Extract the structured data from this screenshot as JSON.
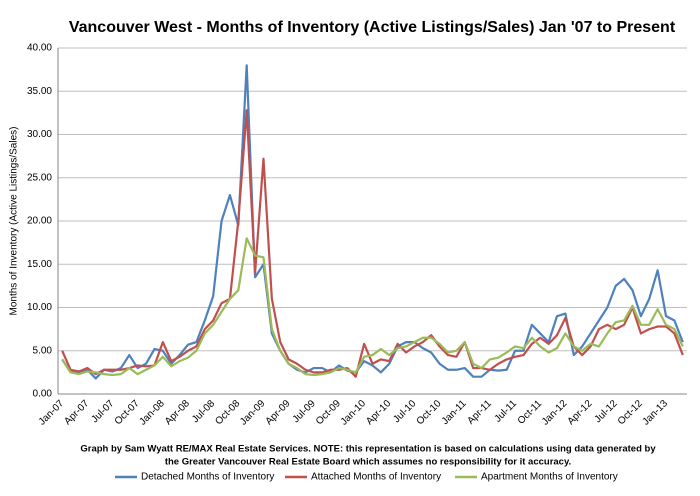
{
  "chart_data": {
    "type": "line",
    "title": "Vancouver West - Months of Inventory (Active Listings/Sales) Jan '07 to Present",
    "y_label": "Months of Inventory (Active Listings/Sales)",
    "notes": [
      "Graph by Sam Wyatt RE/MAX Real Estate Services.   NOTE: this representation is based on calculations using data generated by",
      "the Greater Vancouver Real Estate Board which assumes no responsibility for it accuracy."
    ],
    "categories": [
      "Jan-07",
      null,
      null,
      "Apr-07",
      null,
      null,
      "Jul-07",
      null,
      null,
      "Oct-07",
      null,
      null,
      "Jan-08",
      null,
      null,
      "Apr-08",
      null,
      null,
      "Jul-08",
      null,
      null,
      "Oct-08",
      null,
      null,
      "Jan-09",
      null,
      null,
      "Apr-09",
      null,
      null,
      "Jul-09",
      null,
      null,
      "Oct-09",
      null,
      null,
      "Jan-10",
      null,
      null,
      "Apr-10",
      null,
      null,
      "Jul-10",
      null,
      null,
      "Oct-10",
      null,
      null,
      "Jan-11",
      null,
      null,
      "Apr-11",
      null,
      null,
      "Jul-11",
      null,
      null,
      "Oct-11",
      null,
      null,
      "Jan-12",
      null,
      null,
      "Apr-12",
      null,
      null,
      "Jul-12",
      null,
      null,
      "Oct-12",
      null,
      null,
      "Jan-13",
      null,
      null
    ],
    "series": [
      {
        "name": "Detached Months of Inventory",
        "color": "#4f81bd",
        "values": [
          4.0,
          2.5,
          2.5,
          2.8,
          1.8,
          2.8,
          2.6,
          3.0,
          4.5,
          3.0,
          3.5,
          5.2,
          5.0,
          3.5,
          4.5,
          5.7,
          6.0,
          8.5,
          11.3,
          20.0,
          23.0,
          19.5,
          38.0,
          13.5,
          15.0,
          7.0,
          5.0,
          3.5,
          2.8,
          2.5,
          3.0,
          3.0,
          2.5,
          3.3,
          2.7,
          2.5,
          3.8,
          3.3,
          2.5,
          3.5,
          5.5,
          6.0,
          6.0,
          5.3,
          4.8,
          3.5,
          2.8,
          2.8,
          3.0,
          2.0,
          2.0,
          2.8,
          2.7,
          2.8,
          5.0,
          5.0,
          8.0,
          7.0,
          6.0,
          9.0,
          9.3,
          4.5,
          5.5,
          7.0,
          8.5,
          10.0,
          12.5,
          13.3,
          12.0,
          9.0,
          11.0,
          14.3,
          9.0,
          8.5,
          6.0
        ]
      },
      {
        "name": "Attached Months of Inventory",
        "color": "#c0504d",
        "values": [
          5.0,
          2.8,
          2.6,
          3.0,
          2.3,
          2.8,
          2.8,
          2.8,
          3.0,
          3.3,
          3.2,
          3.3,
          6.0,
          3.8,
          4.3,
          5.0,
          5.5,
          7.5,
          8.5,
          10.5,
          11.0,
          20.0,
          32.8,
          14.0,
          27.2,
          11.0,
          6.0,
          4.0,
          3.5,
          2.8,
          2.5,
          2.5,
          2.8,
          2.8,
          3.0,
          2.0,
          5.8,
          3.5,
          4.0,
          3.8,
          5.8,
          4.8,
          5.5,
          6.0,
          6.8,
          5.5,
          4.5,
          4.3,
          6.0,
          3.0,
          3.0,
          2.8,
          3.5,
          4.0,
          4.3,
          4.5,
          5.8,
          6.5,
          5.8,
          6.8,
          8.8,
          5.5,
          4.5,
          5.5,
          7.5,
          8.0,
          7.5,
          8.0,
          10.0,
          7.0,
          7.5,
          7.8,
          7.8,
          7.0,
          4.5
        ]
      },
      {
        "name": "Apartment Months of Inventory",
        "color": "#9bbb59",
        "values": [
          4.0,
          2.5,
          2.3,
          2.6,
          2.5,
          2.3,
          2.2,
          2.3,
          3.0,
          2.3,
          2.8,
          3.3,
          4.3,
          3.2,
          3.8,
          4.2,
          5.0,
          7.0,
          8.0,
          9.5,
          11.0,
          12.0,
          18.0,
          16.0,
          15.8,
          7.5,
          5.0,
          3.5,
          3.0,
          2.3,
          2.2,
          2.3,
          2.5,
          3.0,
          2.8,
          2.5,
          4.3,
          4.5,
          5.2,
          4.5,
          5.3,
          5.5,
          6.0,
          6.5,
          6.5,
          5.8,
          4.8,
          5.0,
          6.0,
          3.5,
          3.0,
          4.0,
          4.2,
          4.8,
          5.5,
          5.3,
          6.5,
          5.5,
          4.8,
          5.3,
          7.0,
          5.5,
          5.0,
          5.8,
          5.5,
          7.0,
          8.3,
          8.5,
          10.2,
          8.0,
          8.0,
          9.8,
          8.0,
          7.5,
          5.5
        ]
      }
    ],
    "ylim": [
      0,
      40
    ],
    "yticks": [
      {
        "value": 0,
        "label": "0.00"
      },
      {
        "value": 5,
        "label": "5.00"
      },
      {
        "value": 10,
        "label": "10.00"
      },
      {
        "value": 15,
        "label": "15.00"
      },
      {
        "value": 20,
        "label": "20.00"
      },
      {
        "value": 25,
        "label": "25.00"
      },
      {
        "value": 30,
        "label": "30.00"
      },
      {
        "value": 35,
        "label": "35.00"
      },
      {
        "value": 40,
        "label": "40.00"
      }
    ],
    "grid": true,
    "legend": "bottom"
  }
}
